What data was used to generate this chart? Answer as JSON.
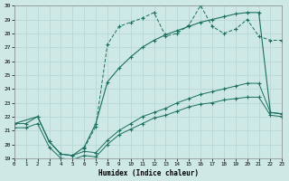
{
  "xlabel": "Humidex (Indice chaleur)",
  "bg_color": "#cde8e5",
  "grid_color": "#b8d8d5",
  "line_color": "#1a7060",
  "xlim": [
    0,
    23
  ],
  "ylim": [
    19,
    30
  ],
  "xticks": [
    0,
    1,
    2,
    3,
    4,
    5,
    6,
    7,
    8,
    9,
    10,
    11,
    12,
    13,
    14,
    15,
    16,
    17,
    18,
    19,
    20,
    21,
    22,
    23
  ],
  "yticks": [
    19,
    20,
    21,
    22,
    23,
    24,
    25,
    26,
    27,
    28,
    29,
    30
  ],
  "line1_x": [
    0,
    1,
    2,
    3,
    4,
    5,
    6,
    7,
    8,
    9,
    10,
    11,
    12,
    13,
    14,
    15,
    16,
    17,
    18,
    19,
    20,
    21,
    22,
    23
  ],
  "line1_y": [
    21.5,
    21.5,
    22.0,
    20.2,
    19.3,
    19.2,
    19.5,
    19.4,
    20.3,
    21.0,
    21.5,
    22.0,
    22.3,
    22.6,
    23.0,
    23.3,
    23.6,
    23.8,
    24.0,
    24.2,
    24.4,
    24.4,
    22.3,
    22.2
  ],
  "line2_x": [
    0,
    1,
    2,
    3,
    4,
    5,
    6,
    7,
    8,
    9,
    10,
    11,
    12,
    13,
    14,
    15,
    16,
    17,
    18,
    19,
    20,
    21,
    22,
    23
  ],
  "line2_y": [
    21.2,
    21.2,
    21.5,
    19.8,
    19.0,
    18.9,
    19.2,
    19.1,
    20.0,
    20.7,
    21.1,
    21.5,
    21.9,
    22.1,
    22.4,
    22.7,
    22.9,
    23.0,
    23.2,
    23.3,
    23.4,
    23.4,
    22.1,
    22.0
  ],
  "line3_x": [
    0,
    2,
    3,
    4,
    5,
    6,
    7,
    8,
    9,
    10,
    11,
    12,
    13,
    14,
    15,
    16,
    17,
    18,
    19,
    20,
    21,
    22,
    23
  ],
  "line3_y": [
    21.5,
    22.0,
    20.2,
    19.3,
    19.2,
    19.8,
    21.5,
    24.5,
    25.5,
    26.3,
    27.0,
    27.5,
    27.9,
    28.2,
    28.5,
    28.8,
    29.0,
    29.2,
    29.4,
    29.5,
    29.5,
    22.3,
    22.2
  ],
  "line4_x": [
    6,
    7,
    8,
    9,
    10,
    11,
    12,
    13,
    14,
    15,
    16,
    17,
    18,
    19,
    20,
    21,
    22,
    23
  ],
  "line4_y": [
    19.7,
    21.3,
    27.2,
    28.5,
    28.8,
    29.1,
    29.5,
    27.8,
    28.0,
    28.6,
    30.0,
    28.5,
    28.0,
    28.3,
    29.0,
    27.8,
    27.5,
    27.5
  ]
}
